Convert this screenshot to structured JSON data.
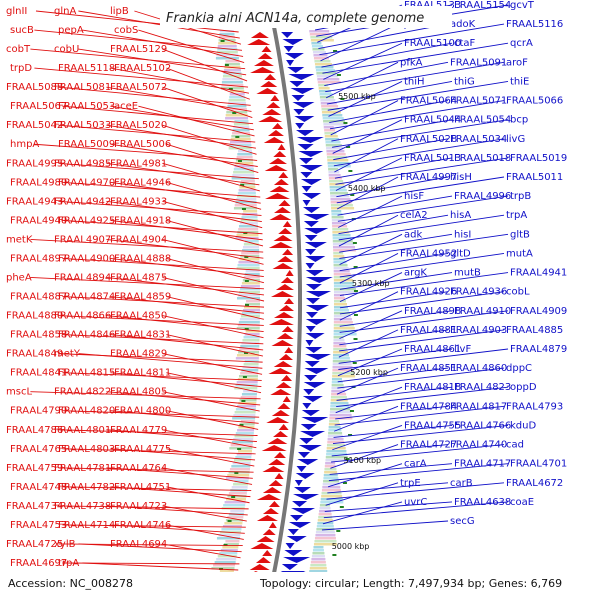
{
  "title": "Frankia alni ACN14a, complete genome",
  "footer": {
    "accession": "Accession: NC_008278",
    "summary": "Topology: circular; Length: 7,497,934 bp; Genes: 6,769"
  },
  "colors": {
    "forward": "#e01010",
    "reverse": "#1010c8",
    "backbone": "#777777",
    "tick": "#208020"
  },
  "kbp_markers": [
    "5500 kbp",
    "5400 kbp",
    "5300 kbp",
    "5200 kbp",
    "5100 kbp",
    "5000 kbp"
  ],
  "left_labels": [
    "glnII",
    "glnA",
    "lipB",
    "sucB",
    "pepA",
    "cobS",
    "cobT",
    "cobU",
    "FRAAL5129",
    "trpD",
    "FRAAL5118",
    "FRAAL5102",
    "FRAAL5088",
    "FRAAL5081",
    "FRAAL5072",
    "FRAAL5067",
    "FRAAL5053",
    "aceE",
    "FRAAL5042",
    "FRAAL5033",
    "FRAAL5020",
    "hmpA",
    "FRAAL5009",
    "FRAAL5006",
    "FRAAL4995",
    "FRAAL4985",
    "FRAAL4981",
    "FRAAL4980",
    "FRAAL4970",
    "FRAAL4946",
    "FRAAL4943",
    "FRAAL4942",
    "FRAAL4933",
    "FRAAL4940",
    "FRAAL4925",
    "FRAAL4918",
    "metK",
    "FRAAL4907",
    "FRAAL4904",
    "FRAAL4897",
    "FRAAL4900",
    "FRAAL4888",
    "pheA",
    "FRAAL4894",
    "FRAAL4875",
    "FRAAL4887",
    "FRAAL4874",
    "FRAAL4859",
    "FRAAL4880",
    "FRAAL4866",
    "FRAAL4850",
    "FRAAL4858",
    "FRAAL4846",
    "FRAAL4831",
    "FRAAL4849",
    "metY",
    "FRAAL4829",
    "FRAAL4841",
    "FRAAL4815",
    "FRAAL4811",
    "mscL",
    "FRAAL4822",
    "FRAAL4805",
    "FRAAL4790",
    "FRAAL4820",
    "FRAAL4800",
    "FRAAL4786",
    "FRAAL4801",
    "FRAAL4779",
    "FRAAL4765",
    "FRAAL4803",
    "FRAAL4775",
    "FRAAL4759",
    "FRAAL4781",
    "FRAAL4764",
    "FRAAL4748",
    "FRAAL4782",
    "FRAAL4751",
    "FRAAL4734",
    "FRAAL4738",
    "FRAAL4723",
    "FRAAL4753",
    "FRAAL4714",
    "FRAAL4746",
    "FRAAL4725",
    "xylB",
    "FRAAL4694",
    "FRAAL4697",
    "trpA"
  ],
  "right_labels": [
    "FRAAL5154",
    "gcvT",
    "FRAAL5133",
    "adoK",
    "FRAAL5116",
    "qcrB",
    "ctaF",
    "qcrA",
    "FRAAL5100",
    "FRAAL5091",
    "aroF",
    "pfkA",
    "thiG",
    "thiE",
    "thiH",
    "FRAAL5071",
    "FRAAL5066",
    "FRAAL5064",
    "FRAAL5054",
    "bcp",
    "FRAAL5044",
    "FRAAL5034",
    "livG",
    "FRAAL5028",
    "FRAAL5018",
    "FRAAL5019",
    "FRAAL5013",
    "hisH",
    "FRAAL5011",
    "FRAAL4997",
    "FRAAL4996",
    "trpB",
    "hisF",
    "hisA",
    "trpA",
    "celA2",
    "hisI",
    "gltB",
    "adk",
    "gltD",
    "mutA",
    "FRAAL4952",
    "mutB",
    "FRAAL4941",
    "argK",
    "FRAAL4936",
    "cobL",
    "FRAAL4926",
    "FRAAL4910",
    "FRAAL4909",
    "FRAAL4898",
    "FRAAL4903",
    "FRAAL4885",
    "FRAAL4881",
    "livF",
    "FRAAL4879",
    "FRAAL4861",
    "FRAAL4860",
    "dppC",
    "FRAAL4851",
    "FRAAL4823",
    "oppD",
    "FRAAL4818",
    "FRAAL4817",
    "FRAAL4793",
    "FRAAL4784",
    "FRAAL4766",
    "kduD",
    "FRAAL4755",
    "FRAAL4740",
    "cad",
    "FRAAL4727",
    "FRAAL4717",
    "FRAAL4701",
    "carA",
    "carB",
    "FRAAL4672",
    "trpE",
    "FRAAL4638",
    "coaE",
    "uvrC",
    "secG"
  ]
}
